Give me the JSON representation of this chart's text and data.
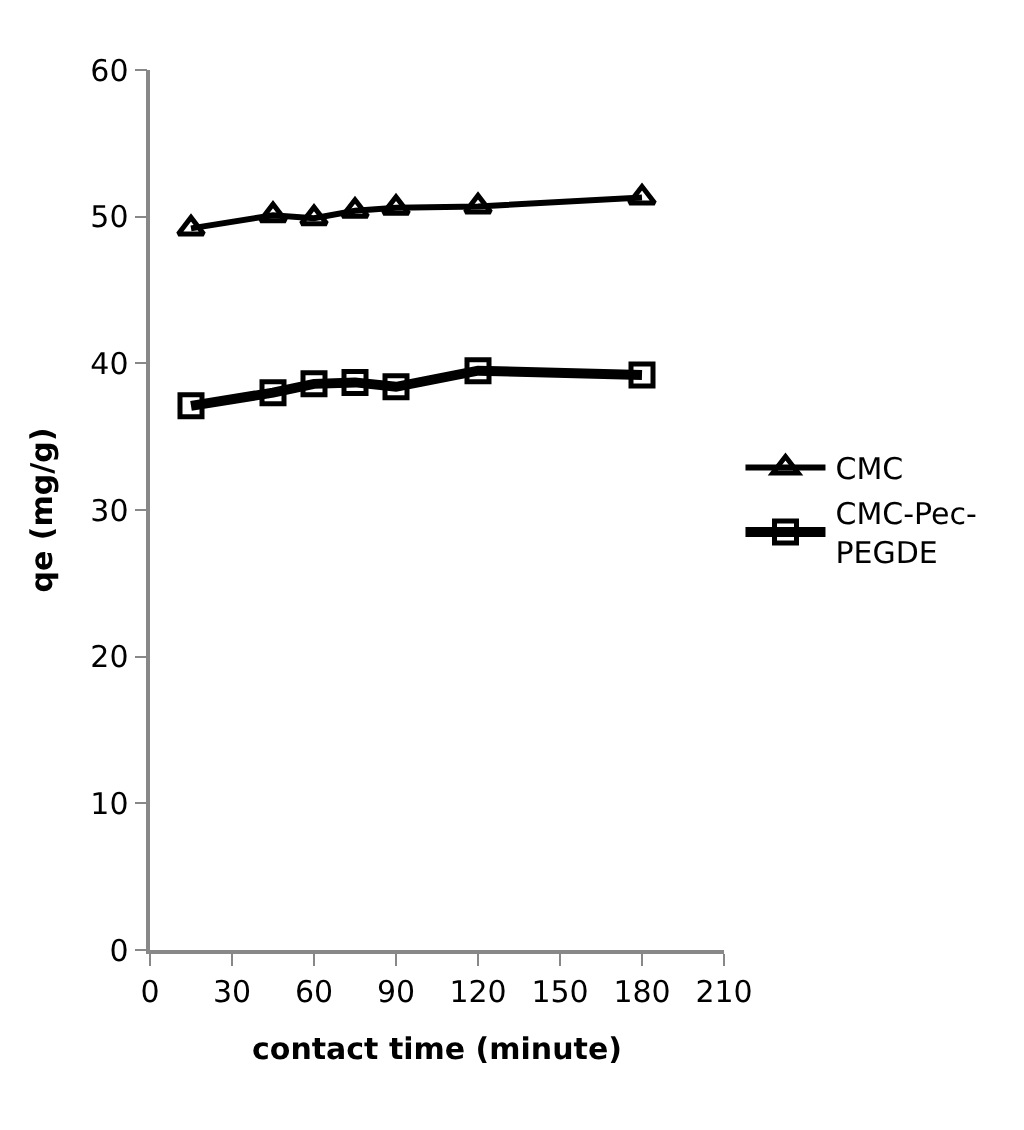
{
  "chart_data": {
    "type": "line",
    "xlabel": "contact time (minute)",
    "ylabel": "qe (mg/g)",
    "xlim": [
      0,
      210
    ],
    "xticks": [
      0,
      30,
      60,
      90,
      120,
      150,
      180,
      210
    ],
    "ylim": [
      0,
      60
    ],
    "yticks": [
      0,
      10,
      20,
      30,
      40,
      50,
      60
    ],
    "legend": "right",
    "x": [
      15,
      45,
      60,
      75,
      90,
      120,
      180
    ],
    "series": [
      {
        "name": "CMC",
        "color": "#000000",
        "marker": "triangle",
        "values": [
          49.2,
          50.1,
          49.9,
          50.4,
          50.6,
          50.7,
          51.3
        ]
      },
      {
        "name": "CMC-Pec-PEGDE",
        "color": "#000000",
        "marker": "square",
        "values": [
          37.1,
          38.0,
          38.6,
          38.7,
          38.4,
          39.5,
          39.2
        ]
      }
    ]
  }
}
